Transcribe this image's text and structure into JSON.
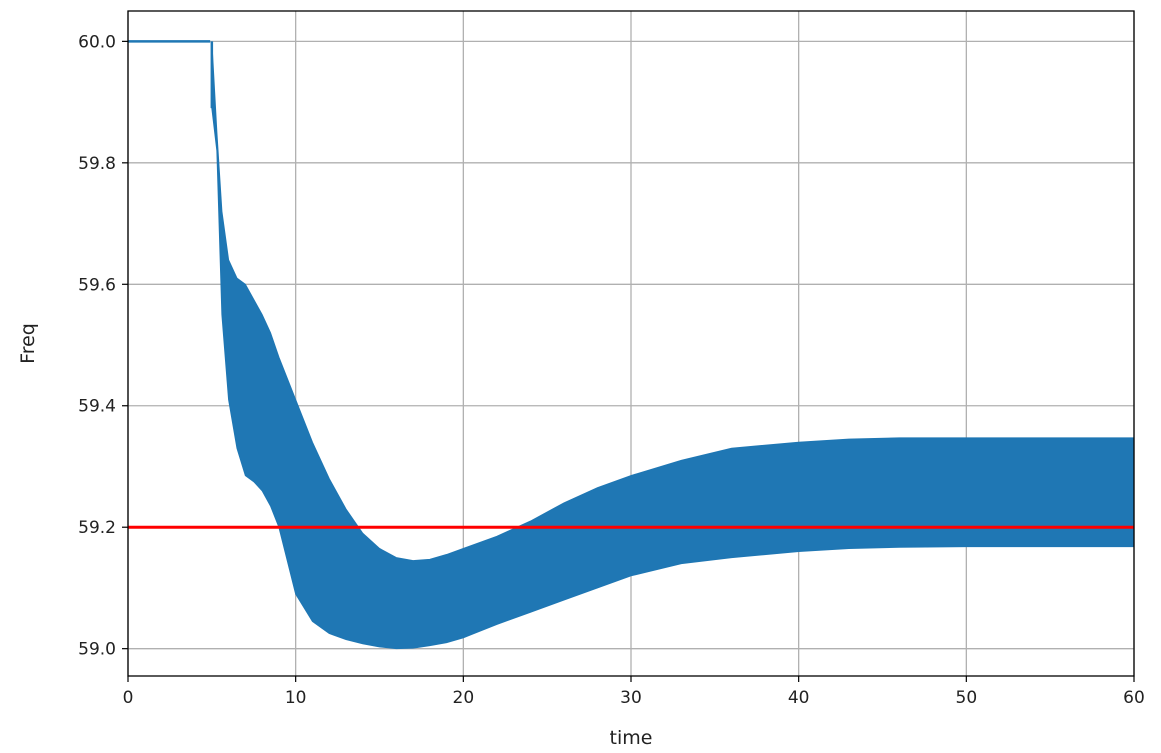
{
  "chart_data": {
    "type": "line",
    "title": "",
    "xlabel": "time",
    "ylabel": "Freq",
    "xlim": [
      0,
      60
    ],
    "ylim": [
      58.955,
      60.05
    ],
    "grid": true,
    "x_ticks": [
      "0",
      "10",
      "20",
      "30",
      "40",
      "50",
      "60"
    ],
    "y_ticks": [
      "59.0",
      "59.2",
      "59.4",
      "59.6",
      "59.8",
      "60.0"
    ],
    "series": [
      {
        "color": "#1f77b4",
        "style": "oscillating band",
        "x": [
          0,
          4.9,
          5.0,
          5.3,
          5.6,
          6.0,
          6.5,
          7.0,
          7.5,
          8.0,
          8.5,
          9.0,
          10,
          11,
          12,
          13,
          14,
          15,
          16,
          17,
          18,
          19,
          20,
          22,
          24,
          26,
          28,
          30,
          33,
          36,
          40,
          43,
          46,
          50,
          55,
          60
        ],
        "upper": [
          60.0,
          60.0,
          60.0,
          59.85,
          59.72,
          59.64,
          59.61,
          59.6,
          59.575,
          59.55,
          59.52,
          59.48,
          59.41,
          59.34,
          59.28,
          59.23,
          59.19,
          59.165,
          59.15,
          59.145,
          59.147,
          59.155,
          59.165,
          59.185,
          59.21,
          59.24,
          59.265,
          59.285,
          59.31,
          59.33,
          59.34,
          59.345,
          59.347,
          59.347,
          59.347,
          59.347
        ],
        "lower": [
          60.0,
          60.0,
          59.89,
          59.82,
          59.55,
          59.41,
          59.33,
          59.285,
          59.275,
          59.26,
          59.235,
          59.2,
          59.09,
          59.045,
          59.025,
          59.015,
          59.008,
          59.003,
          59.0,
          59.001,
          59.005,
          59.01,
          59.018,
          59.04,
          59.06,
          59.08,
          59.1,
          59.12,
          59.14,
          59.15,
          59.16,
          59.165,
          59.167,
          59.168,
          59.168,
          59.168
        ]
      },
      {
        "color": "#ff0000",
        "style": "horizontal line",
        "x": [
          0,
          60
        ],
        "values": [
          59.2,
          59.2
        ]
      }
    ]
  }
}
